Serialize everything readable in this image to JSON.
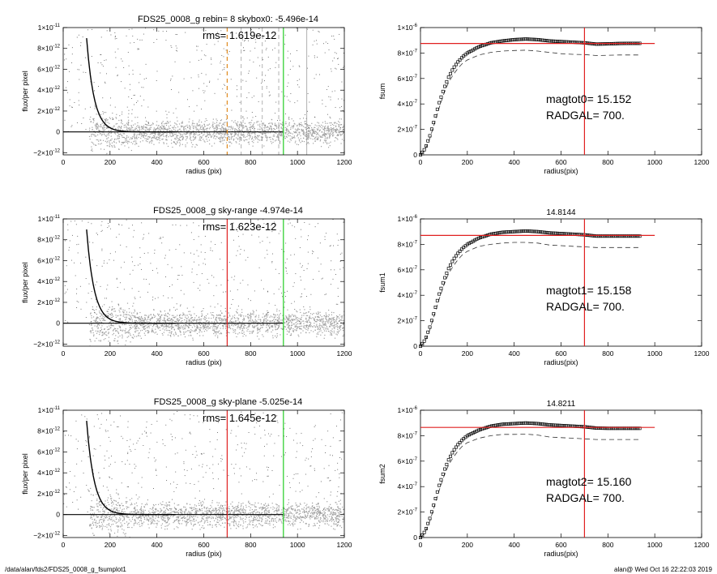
{
  "footer": {
    "left": "/data/alan/fds2/FDS25_0008_g_fsumplot1",
    "right": "alan@  Wed Oct 16 22:22:03 2019"
  },
  "colors": {
    "scatter_gray": "#a0a0a0",
    "profile": "#000000",
    "red_line": "#e02020",
    "green_line": "#22cc22",
    "orange_line": "#e08a1e",
    "dashed_gray": "#909090"
  },
  "chart_data": [
    {
      "id": "flux1",
      "type": "scatter",
      "title": "FDS25_0008_g rebin= 8    skybox0: -5.496e-14",
      "rms": "rms= 1.619e-12",
      "xlabel": "radius (pix)",
      "ylabel": "flux/per pixel",
      "xlim": [
        0,
        1200
      ],
      "ylim": [
        -2.2e-12,
        1e-11
      ],
      "xticks": [
        "0",
        "200",
        "400",
        "600",
        "800",
        "1000",
        "1200"
      ],
      "yticks": [
        {
          "v": 1e-11,
          "m": "1×10",
          "e": "-11"
        },
        {
          "v": 8e-12,
          "m": "8×10",
          "e": "-12"
        },
        {
          "v": 6e-12,
          "m": "6×10",
          "e": "-12"
        },
        {
          "v": 4e-12,
          "m": "4×10",
          "e": "-12"
        },
        {
          "v": 2e-12,
          "m": "2×10",
          "e": "-12"
        },
        {
          "v": 0,
          "m": "0",
          "e": ""
        },
        {
          "v": -2e-12,
          "m": "−2×10",
          "e": "-12"
        }
      ],
      "vlines": [
        {
          "x": 700,
          "color": "orange",
          "dashed": true
        },
        {
          "x": 760,
          "color": "gray",
          "dashed": true
        },
        {
          "x": 850,
          "color": "gray",
          "dashed": true
        },
        {
          "x": 920,
          "color": "gray",
          "dashed": true
        },
        {
          "x": 940,
          "color": "green",
          "dashed": false
        },
        {
          "x": 1040,
          "color": "gray",
          "dashed": false
        }
      ],
      "zero_line_to": 940,
      "scatter_to": 1200
    },
    {
      "id": "fsum0",
      "type": "line",
      "title": "",
      "ylabel": "fsum",
      "xlabel": "radius(pix)",
      "xlim": [
        0,
        1200
      ],
      "ylim": [
        0,
        1e-06
      ],
      "xticks": [
        "0",
        "200",
        "400",
        "600",
        "800",
        "1000",
        "1200"
      ],
      "yticks": [
        {
          "v": 1e-06,
          "m": "1×10",
          "e": "-6"
        },
        {
          "v": 8e-07,
          "m": "8×10",
          "e": "-7"
        },
        {
          "v": 6e-07,
          "m": "6×10",
          "e": "-7"
        },
        {
          "v": 4e-07,
          "m": "4×10",
          "e": "-7"
        },
        {
          "v": 2e-07,
          "m": "2×10",
          "e": "-7"
        },
        {
          "v": 0,
          "m": "0",
          "e": ""
        }
      ],
      "hline": 8.75e-07,
      "vline": 700,
      "mag_label": "magtot0=  15.152",
      "rad_label": "RADGAL=    700.",
      "curve_x": [
        0,
        20,
        40,
        60,
        80,
        100,
        120,
        140,
        160,
        180,
        200,
        250,
        300,
        350,
        400,
        450,
        500,
        550,
        600,
        650,
        700,
        750,
        800,
        850,
        900,
        940
      ],
      "curve_y": [
        0,
        5e-08,
        1.5e-07,
        2.8e-07,
        4.1e-07,
        5.2e-07,
        6.1e-07,
        6.8e-07,
        7.3e-07,
        7.7e-07,
        8e-07,
        8.5e-07,
        8.8e-07,
        8.95e-07,
        9.05e-07,
        9.1e-07,
        9.05e-07,
        8.95e-07,
        8.9e-07,
        8.85e-07,
        8.8e-07,
        8.7e-07,
        8.72e-07,
        8.75e-07,
        8.76e-07,
        8.76e-07
      ],
      "dashed_x": [
        0,
        20,
        40,
        60,
        80,
        100,
        120,
        140,
        160,
        180,
        200,
        250,
        300,
        350,
        400,
        450,
        500,
        550,
        600,
        650,
        700,
        750,
        800,
        850,
        900,
        940
      ],
      "dashed_y": [
        0,
        4e-08,
        1.3e-07,
        2.5e-07,
        3.7e-07,
        4.8e-07,
        5.7e-07,
        6.3e-07,
        6.8e-07,
        7.2e-07,
        7.45e-07,
        7.85e-07,
        8.05e-07,
        8.15e-07,
        8.2e-07,
        8.22e-07,
        8.15e-07,
        8.05e-07,
        7.95e-07,
        7.9e-07,
        7.88e-07,
        7.8e-07,
        7.82e-07,
        7.85e-07,
        7.85e-07,
        7.85e-07
      ]
    },
    {
      "id": "flux2",
      "type": "scatter",
      "title": "FDS25_0008_g sky-range -4.974e-14",
      "rms": "rms= 1.623e-12",
      "xlabel": "radius (pix)",
      "ylabel": "flux/per pixel",
      "xlim": [
        0,
        1200
      ],
      "ylim": [
        -2.2e-12,
        1e-11
      ],
      "xticks": [
        "0",
        "200",
        "400",
        "600",
        "800",
        "1000",
        "1200"
      ],
      "yticks": [
        {
          "v": 1e-11,
          "m": "1×10",
          "e": "-11"
        },
        {
          "v": 8e-12,
          "m": "8×10",
          "e": "-12"
        },
        {
          "v": 6e-12,
          "m": "6×10",
          "e": "-12"
        },
        {
          "v": 4e-12,
          "m": "4×10",
          "e": "-12"
        },
        {
          "v": 2e-12,
          "m": "2×10",
          "e": "-12"
        },
        {
          "v": 0,
          "m": "0",
          "e": ""
        },
        {
          "v": -2e-12,
          "m": "−2×10",
          "e": "-12"
        }
      ],
      "vlines": [
        {
          "x": 700,
          "color": "red",
          "dashed": false
        },
        {
          "x": 940,
          "color": "green",
          "dashed": false
        }
      ],
      "zero_line_to": 940,
      "scatter_to": 1200
    },
    {
      "id": "fsum1",
      "type": "line",
      "title": "14.8144",
      "ylabel": "fsum1",
      "xlabel": "radius(pix)",
      "xlim": [
        0,
        1200
      ],
      "ylim": [
        0,
        1e-06
      ],
      "xticks": [
        "0",
        "200",
        "400",
        "600",
        "800",
        "1000",
        "1200"
      ],
      "yticks": [
        {
          "v": 1e-06,
          "m": "1×10",
          "e": "-6"
        },
        {
          "v": 8e-07,
          "m": "8×10",
          "e": "-7"
        },
        {
          "v": 6e-07,
          "m": "6×10",
          "e": "-7"
        },
        {
          "v": 4e-07,
          "m": "4×10",
          "e": "-7"
        },
        {
          "v": 2e-07,
          "m": "2×10",
          "e": "-7"
        },
        {
          "v": 0,
          "m": "0",
          "e": ""
        }
      ],
      "hline": 8.7e-07,
      "vline": 700,
      "mag_label": "magtot1=  15.158",
      "rad_label": "RADGAL=    700.",
      "curve_x": [
        0,
        20,
        40,
        60,
        80,
        100,
        120,
        140,
        160,
        180,
        200,
        250,
        300,
        350,
        400,
        450,
        500,
        550,
        600,
        650,
        700,
        750,
        800,
        850,
        900,
        940
      ],
      "curve_y": [
        0,
        5e-08,
        1.5e-07,
        2.8e-07,
        4.1e-07,
        5.2e-07,
        6.1e-07,
        6.8e-07,
        7.3e-07,
        7.7e-07,
        8e-07,
        8.5e-07,
        8.8e-07,
        8.95e-07,
        9e-07,
        9.05e-07,
        9e-07,
        8.9e-07,
        8.85e-07,
        8.8e-07,
        8.75e-07,
        8.65e-07,
        8.65e-07,
        8.65e-07,
        8.65e-07,
        8.65e-07
      ],
      "dashed_x": [
        0,
        20,
        40,
        60,
        80,
        100,
        120,
        140,
        160,
        180,
        200,
        250,
        300,
        350,
        400,
        450,
        500,
        550,
        600,
        650,
        700,
        750,
        800,
        850,
        900,
        940
      ],
      "dashed_y": [
        0,
        4e-08,
        1.3e-07,
        2.5e-07,
        3.7e-07,
        4.8e-07,
        5.7e-07,
        6.3e-07,
        6.8e-07,
        7.2e-07,
        7.45e-07,
        7.85e-07,
        8e-07,
        8.1e-07,
        8.15e-07,
        8.15e-07,
        8.1e-07,
        7.95e-07,
        7.9e-07,
        7.85e-07,
        7.8e-07,
        7.75e-07,
        7.75e-07,
        7.75e-07,
        7.75e-07,
        7.75e-07
      ]
    },
    {
      "id": "flux3",
      "type": "scatter",
      "title": "FDS25_0008_g sky-plane -5.025e-14",
      "rms": "rms= 1.645e-12",
      "xlabel": "radius (pix)",
      "ylabel": "flux/per pixel",
      "xlim": [
        0,
        1200
      ],
      "ylim": [
        -2.2e-12,
        1e-11
      ],
      "xticks": [
        "0",
        "200",
        "400",
        "600",
        "800",
        "1000",
        "1200"
      ],
      "yticks": [
        {
          "v": 1e-11,
          "m": "1×10",
          "e": "-11"
        },
        {
          "v": 8e-12,
          "m": "8×10",
          "e": "-12"
        },
        {
          "v": 6e-12,
          "m": "6×10",
          "e": "-12"
        },
        {
          "v": 4e-12,
          "m": "4×10",
          "e": "-12"
        },
        {
          "v": 2e-12,
          "m": "2×10",
          "e": "-12"
        },
        {
          "v": 0,
          "m": "0",
          "e": ""
        },
        {
          "v": -2e-12,
          "m": "−2×10",
          "e": "-12"
        }
      ],
      "vlines": [
        {
          "x": 700,
          "color": "red",
          "dashed": false
        },
        {
          "x": 940,
          "color": "green",
          "dashed": false
        }
      ],
      "zero_line_to": 940,
      "scatter_to": 1200
    },
    {
      "id": "fsum2",
      "type": "line",
      "title": "14.8211",
      "ylabel": "fsum2",
      "xlabel": "radius(pix)",
      "xlim": [
        0,
        1200
      ],
      "ylim": [
        0,
        1e-06
      ],
      "xticks": [
        "0",
        "200",
        "400",
        "600",
        "800",
        "1000",
        "1200"
      ],
      "yticks": [
        {
          "v": 1e-06,
          "m": "1×10",
          "e": "-6"
        },
        {
          "v": 8e-07,
          "m": "8×10",
          "e": "-7"
        },
        {
          "v": 6e-07,
          "m": "6×10",
          "e": "-7"
        },
        {
          "v": 4e-07,
          "m": "4×10",
          "e": "-7"
        },
        {
          "v": 2e-07,
          "m": "2×10",
          "e": "-7"
        },
        {
          "v": 0,
          "m": "0",
          "e": ""
        }
      ],
      "hline": 8.65e-07,
      "vline": 700,
      "mag_label": "magtot2=  15.160",
      "rad_label": "RADGAL=    700.",
      "curve_x": [
        0,
        20,
        40,
        60,
        80,
        100,
        120,
        140,
        160,
        180,
        200,
        250,
        300,
        350,
        400,
        450,
        500,
        550,
        600,
        650,
        700,
        750,
        800,
        850,
        900,
        940
      ],
      "curve_y": [
        0,
        5e-08,
        1.5e-07,
        2.8e-07,
        4.1e-07,
        5.2e-07,
        6.1e-07,
        6.8e-07,
        7.3e-07,
        7.7e-07,
        8e-07,
        8.45e-07,
        8.75e-07,
        8.9e-07,
        8.95e-07,
        9e-07,
        8.95e-07,
        8.85e-07,
        8.8e-07,
        8.75e-07,
        8.7e-07,
        8.6e-07,
        8.58e-07,
        8.58e-07,
        8.58e-07,
        8.58e-07
      ],
      "dashed_x": [
        0,
        20,
        40,
        60,
        80,
        100,
        120,
        140,
        160,
        180,
        200,
        250,
        300,
        350,
        400,
        450,
        500,
        550,
        600,
        650,
        700,
        750,
        800,
        850,
        900,
        940
      ],
      "dashed_y": [
        0,
        4e-08,
        1.3e-07,
        2.5e-07,
        3.7e-07,
        4.8e-07,
        5.7e-07,
        6.3e-07,
        6.8e-07,
        7.2e-07,
        7.45e-07,
        7.8e-07,
        8e-07,
        8.1e-07,
        8.1e-07,
        8.12e-07,
        8.05e-07,
        7.9e-07,
        7.85e-07,
        7.8e-07,
        7.75e-07,
        7.7e-07,
        7.7e-07,
        7.7e-07,
        7.7e-07,
        7.7e-07
      ]
    }
  ]
}
